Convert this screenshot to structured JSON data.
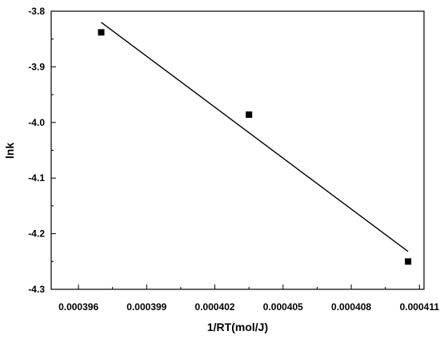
{
  "chart_data": {
    "type": "scatter",
    "title": "",
    "xlabel": "1/RT(mol/J)",
    "ylabel": "lnk",
    "xlim": [
      0.0003948,
      0.0004112
    ],
    "ylim": [
      -4.3,
      -3.8
    ],
    "xticks": [
      0.000396,
      0.000399,
      0.000402,
      0.000405,
      0.000408,
      0.000411
    ],
    "xtick_labels": [
      "0.000396",
      "0.000399",
      "0.000402",
      "0.000405",
      "0.000408",
      "0.000411"
    ],
    "yticks": [
      -4.3,
      -4.2,
      -4.1,
      -4.0,
      -3.9,
      -3.8
    ],
    "ytick_labels": [
      "-4.3",
      "-4.2",
      "-4.1",
      "-4.0",
      "-3.9",
      "-3.8"
    ],
    "grid": false,
    "legend": "none",
    "series": [
      {
        "kind": "points",
        "marker": "square",
        "color": "#000000",
        "x": [
          0.000397,
          0.0004035,
          0.0004105
        ],
        "y": [
          -3.838,
          -3.986,
          -4.25
        ]
      },
      {
        "kind": "fit-line",
        "color": "#000000",
        "x": [
          0.000397,
          0.0004105
        ],
        "y": [
          -3.82,
          -4.232
        ]
      }
    ]
  }
}
